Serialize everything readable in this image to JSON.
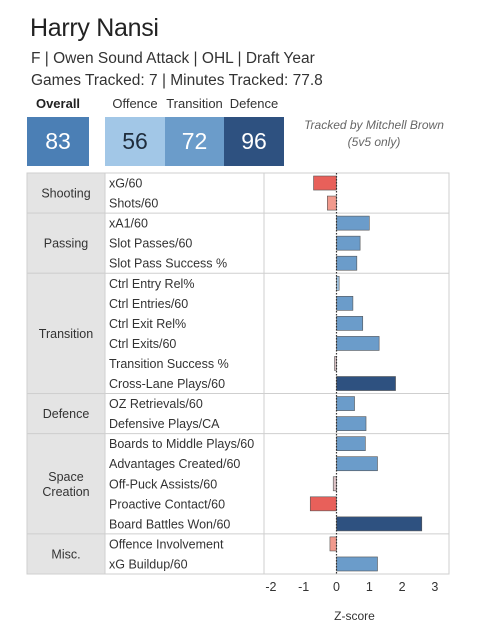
{
  "player": {
    "name": "Harry Nansi",
    "line1": "F | Owen Sound Attack | OHL | Draft Year",
    "line2": "Games Tracked: 7 | Minutes Tracked: 77.8"
  },
  "scores": {
    "overall_label": "Overall",
    "overall": "83",
    "offence_label": "Offence",
    "offence": "56",
    "transition_label": "Transition",
    "transition": "72",
    "defence_label": "Defence",
    "defence": "96"
  },
  "credit": {
    "line1": "Tracked by Mitchell Brown",
    "line2": "(5v5 only)"
  },
  "colors": {
    "overall": "#4b7fb5",
    "offence": "#a2c7e7",
    "transition": "#6b9cca",
    "defence": "#2e5180",
    "negative_strong": "#e8605a",
    "negative_mild": "#f19a8d",
    "negative_slight": "#ddc3c6"
  },
  "chart_data": {
    "type": "bar",
    "orientation": "horizontal",
    "xlabel": "Z-score",
    "xlim": [
      -2.6,
      3.3
    ],
    "xticks": [
      -2,
      -1,
      0,
      1,
      2,
      3
    ],
    "groups": [
      {
        "name": "Shooting",
        "metrics": [
          {
            "label": "xG/60",
            "value": -0.7
          },
          {
            "label": "Shots/60",
            "value": -0.28
          }
        ]
      },
      {
        "name": "Passing",
        "metrics": [
          {
            "label": "xA1/60",
            "value": 1.0
          },
          {
            "label": "Slot Passes/60",
            "value": 0.72
          },
          {
            "label": "Slot Pass Success %",
            "value": 0.62
          }
        ]
      },
      {
        "name": "Transition",
        "metrics": [
          {
            "label": "Ctrl Entry Rel%",
            "value": 0.08
          },
          {
            "label": "Ctrl Entries/60",
            "value": 0.5
          },
          {
            "label": "Ctrl Exit Rel%",
            "value": 0.8
          },
          {
            "label": "Ctrl Exits/60",
            "value": 1.3
          },
          {
            "label": "Transition Success %",
            "value": -0.06
          },
          {
            "label": "Cross-Lane Plays/60",
            "value": 1.8
          }
        ]
      },
      {
        "name": "Defence",
        "metrics": [
          {
            "label": "OZ Retrievals/60",
            "value": 0.55
          },
          {
            "label": "Defensive Plays/CA",
            "value": 0.9
          }
        ]
      },
      {
        "name": "Space Creation",
        "metrics": [
          {
            "label": "Boards to Middle Plays/60",
            "value": 0.88
          },
          {
            "label": "Advantages Created/60",
            "value": 1.25
          },
          {
            "label": "Off-Puck Assists/60",
            "value": -0.1
          },
          {
            "label": "Proactive Contact/60",
            "value": -0.8
          },
          {
            "label": "Board Battles Won/60",
            "value": 2.6
          }
        ]
      },
      {
        "name": "Misc.",
        "metrics": [
          {
            "label": "Offence Involvement",
            "value": -0.2
          },
          {
            "label": "xG Buildup/60",
            "value": 1.25
          }
        ]
      }
    ]
  }
}
